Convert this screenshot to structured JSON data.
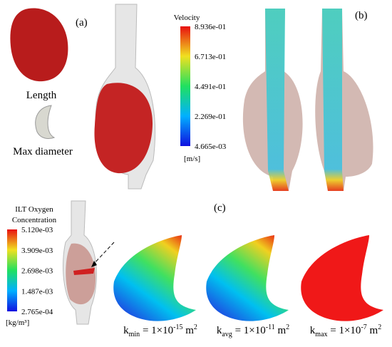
{
  "panel_labels": [
    "(a)",
    "(b)",
    "(c)"
  ],
  "shape_labels": [
    "Length",
    "Max diameter"
  ],
  "velocity_colorbar": {
    "title": "Velocity",
    "ticks": [
      "8.936e-01",
      "6.713e-01",
      "4.491e-01",
      "2.269e-01",
      "4.665e-03"
    ],
    "unit": "[m/s]"
  },
  "oxygen_colorbar": {
    "title_lines": [
      "ILT Oxygen",
      "Concentration"
    ],
    "ticks": [
      "5.120e-03",
      "3.909e-03",
      "2.698e-03",
      "1.487e-03",
      "2.765e-04"
    ],
    "unit": "[kg/m³]"
  },
  "permeability_labels": [
    {
      "symbol": "k",
      "subscript": "min",
      "equation": " = 1×10",
      "exponent": "-15",
      "unit": " m",
      "unit_exponent": "2"
    },
    {
      "symbol": "k",
      "subscript": "avg",
      "equation": " = 1×10",
      "exponent": "-11",
      "unit": " m",
      "unit_exponent": "2"
    },
    {
      "symbol": "k",
      "subscript": "max",
      "equation": " = 1×10",
      "exponent": "-7",
      "unit": " m",
      "unit_exponent": "2"
    }
  ]
}
